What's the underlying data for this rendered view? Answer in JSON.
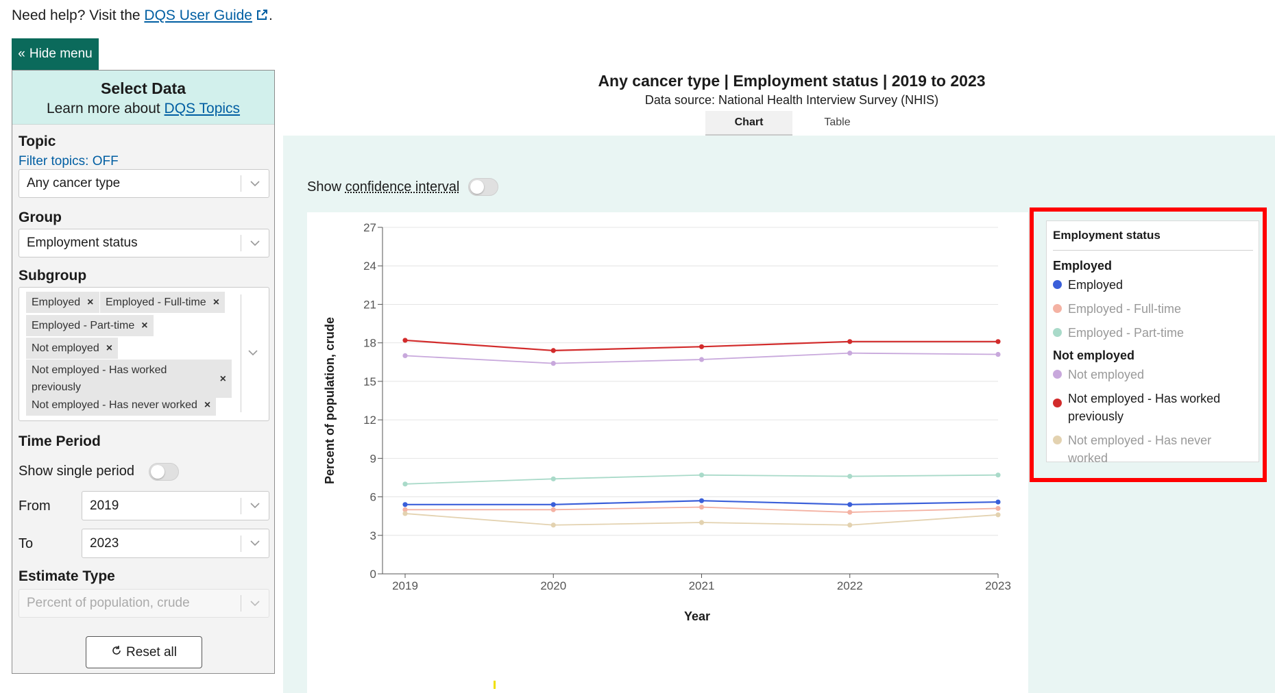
{
  "help": {
    "prefix": "Need help? Visit the ",
    "link": "DQS User Guide",
    "suffix": "."
  },
  "hide_menu": "Hide menu",
  "sidebar": {
    "title": "Select Data",
    "learn_prefix": "Learn more about ",
    "learn_link": "DQS Topics",
    "topic_label": "Topic",
    "filter_topics": "Filter topics: OFF",
    "topic_value": "Any cancer type",
    "group_label": "Group",
    "group_value": "Employment status",
    "subgroup_label": "Subgroup",
    "subgroups": [
      "Employed",
      "Employed - Full-time",
      "Employed - Part-time",
      "Not employed",
      "Not employed - Has worked previously",
      "Not employed - Has never worked"
    ],
    "time_label": "Time Period",
    "single_period": "Show single period",
    "from_label": "From",
    "from_value": "2019",
    "to_label": "To",
    "to_value": "2023",
    "estimate_label": "Estimate Type",
    "estimate_placeholder": "Percent of population, crude",
    "reset": "Reset all"
  },
  "chart_header": {
    "title": "Any cancer type | Employment status | 2019 to 2023",
    "source": "Data source: National Health Interview Survey (NHIS)",
    "tabs": [
      "Chart",
      "Table"
    ]
  },
  "ci": {
    "prefix": "Show ",
    "term": "confidence interval"
  },
  "colors": {
    "accent": "#0b6a5b",
    "employed": "#3a5fd9",
    "employed_full_time": "#f4b2a3",
    "employed_part_time": "#a9dac9",
    "not_employed": "#c8a8dc",
    "not_employed_worked_previously": "#d22b2b",
    "not_employed_never_worked": "#e3d2b0"
  },
  "legend": {
    "title": "Employment status",
    "groups": [
      {
        "name": "Employed",
        "items": [
          "Employed",
          "Employed - Full-time",
          "Employed - Part-time"
        ]
      },
      {
        "name": "Not employed",
        "items": [
          "Not employed",
          "Not employed - Has worked previously",
          "Not employed - Has never worked"
        ]
      }
    ]
  },
  "chart_data": {
    "type": "line",
    "x": [
      2019,
      2020,
      2021,
      2022,
      2023
    ],
    "xlabel": "Year",
    "ylabel": "Percent of population, crude",
    "ylim": [
      0,
      27
    ],
    "yticks": [
      0,
      3,
      6,
      9,
      12,
      15,
      18,
      21,
      24,
      27
    ],
    "grid": "horizontal",
    "legend_position": "right",
    "series": [
      {
        "name": "Employed",
        "color": "#3a5fd9",
        "values": [
          5.4,
          5.4,
          5.7,
          5.4,
          5.6
        ],
        "muted": false
      },
      {
        "name": "Employed - Full-time",
        "color": "#f4b2a3",
        "values": [
          5.0,
          5.0,
          5.2,
          4.8,
          5.1
        ],
        "muted": true
      },
      {
        "name": "Employed - Part-time",
        "color": "#a9dac9",
        "values": [
          7.0,
          7.4,
          7.7,
          7.6,
          7.7
        ],
        "muted": true
      },
      {
        "name": "Not employed",
        "color": "#c8a8dc",
        "values": [
          17.0,
          16.4,
          16.7,
          17.2,
          17.1
        ],
        "muted": true
      },
      {
        "name": "Not employed - Has worked previously",
        "color": "#d22b2b",
        "values": [
          18.2,
          17.4,
          17.7,
          18.1,
          18.1
        ],
        "muted": false
      },
      {
        "name": "Not employed - Has never worked",
        "color": "#e3d2b0",
        "values": [
          4.7,
          3.8,
          4.0,
          3.8,
          4.6
        ],
        "muted": true
      }
    ]
  }
}
